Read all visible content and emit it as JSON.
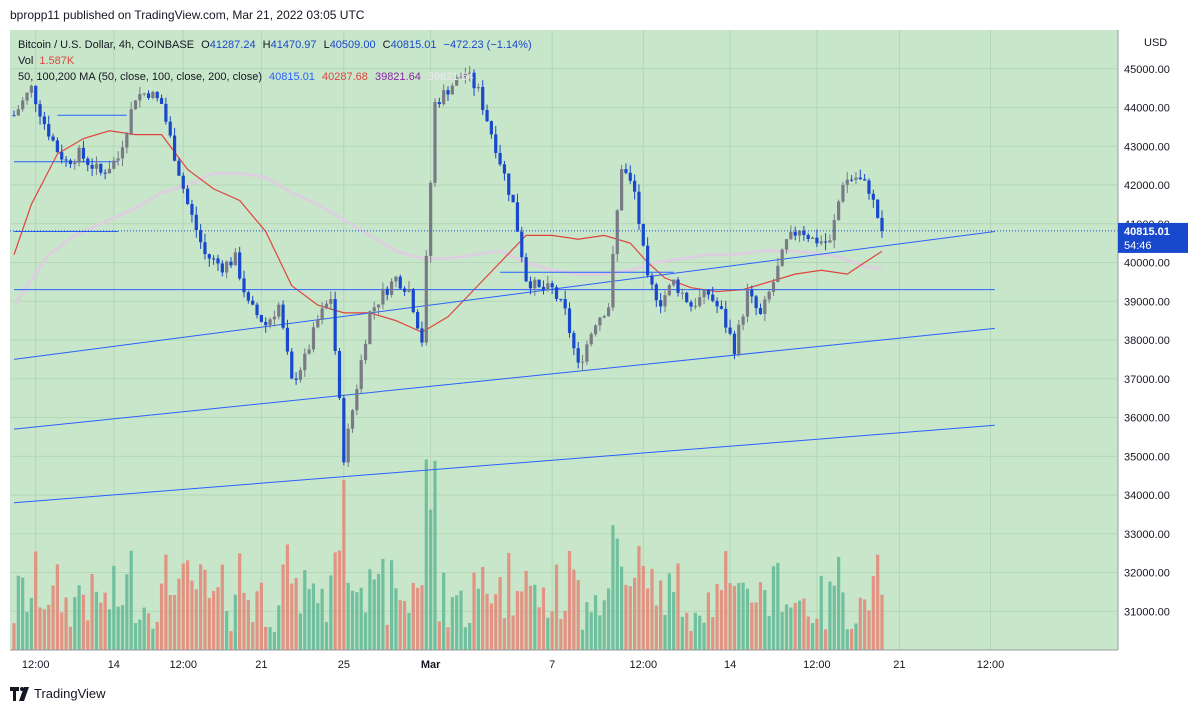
{
  "header": {
    "publisher": "bpropp11 published on TradingView.com, Mar 21, 2022 03:05 UTC"
  },
  "footer": {
    "brand": "TradingView"
  },
  "colors": {
    "background": "#c8e6c9",
    "up_candle": "#787b86",
    "down_candle": "#1848cc",
    "vol_up": "#66bb9a",
    "vol_down": "#e38b7c",
    "ma50": "#e0443e",
    "ma100": "#dccfe0",
    "trend": "#2962ff",
    "price_tag": "#1848cc"
  },
  "legend": {
    "title": "Bitcoin / U.S. Dollar, 4h, COINBASE",
    "o_label": "O",
    "o": "41287.24",
    "h_label": "H",
    "h": "41470.97",
    "l_label": "L",
    "l": "40509.00",
    "c_label": "C",
    "c": "40815.01",
    "change": "−472.23 (−1.14%)",
    "vol_label": "Vol",
    "vol": "1.587K",
    "ma_label": "50, 100,200 MA (50, close, 100, close, 200, close)",
    "ma1": "40815.01",
    "ma2": "40287.68",
    "ma3": "39821.64",
    "ma4": "39821.64"
  },
  "price_tag": {
    "price": "40815.01",
    "countdown": "54:46"
  },
  "chart_data": {
    "type": "candlestick",
    "symbol": "Bitcoin / U.S. Dollar",
    "timeframe": "4h",
    "exchange": "COINBASE",
    "currency": "USD",
    "ylim": [
      30000,
      46000
    ],
    "y_ticks": [
      "45000.00",
      "44000.00",
      "43000.00",
      "42000.00",
      "41000.00",
      "40000.00",
      "39000.00",
      "38000.00",
      "37000.00",
      "36000.00",
      "35000.00",
      "34000.00",
      "33000.00",
      "32000.00",
      "31000.00"
    ],
    "x_ticks": [
      "12:00",
      "14",
      "12:00",
      "21",
      "25",
      "Mar",
      "7",
      "12:00",
      "14",
      "12:00",
      "21",
      "12:00"
    ],
    "x_tick_index": [
      5,
      23,
      39,
      57,
      76,
      96,
      124,
      145,
      165,
      185,
      204,
      225
    ],
    "price_path": [
      [
        0,
        43800
      ],
      [
        4,
        44500
      ],
      [
        7,
        43600
      ],
      [
        10,
        42900
      ],
      [
        12,
        42600
      ],
      [
        15,
        42800
      ],
      [
        18,
        42500
      ],
      [
        20,
        42300
      ],
      [
        24,
        42700
      ],
      [
        28,
        44300
      ],
      [
        31,
        44400
      ],
      [
        34,
        44100
      ],
      [
        36,
        43200
      ],
      [
        40,
        41500
      ],
      [
        44,
        40200
      ],
      [
        48,
        39900
      ],
      [
        51,
        40100
      ],
      [
        54,
        38900
      ],
      [
        58,
        38400
      ],
      [
        61,
        38900
      ],
      [
        64,
        36900
      ],
      [
        67,
        37500
      ],
      [
        70,
        38500
      ],
      [
        73,
        39100
      ],
      [
        76,
        35000
      ],
      [
        78,
        36200
      ],
      [
        82,
        38700
      ],
      [
        85,
        39200
      ],
      [
        88,
        39600
      ],
      [
        91,
        39300
      ],
      [
        94,
        38000
      ],
      [
        97,
        44100
      ],
      [
        101,
        44600
      ],
      [
        104,
        44900
      ],
      [
        107,
        44400
      ],
      [
        111,
        43000
      ],
      [
        115,
        41500
      ],
      [
        118,
        39600
      ],
      [
        121,
        39300
      ],
      [
        124,
        39300
      ],
      [
        127,
        38700
      ],
      [
        130,
        37300
      ],
      [
        134,
        38500
      ],
      [
        137,
        38900
      ],
      [
        140,
        42500
      ],
      [
        143,
        41800
      ],
      [
        146,
        39500
      ],
      [
        149,
        39000
      ],
      [
        152,
        39500
      ],
      [
        156,
        38900
      ],
      [
        160,
        39200
      ],
      [
        163,
        38700
      ],
      [
        166,
        37800
      ],
      [
        169,
        39200
      ],
      [
        172,
        38600
      ],
      [
        175,
        39500
      ],
      [
        178,
        40500
      ],
      [
        181,
        40900
      ],
      [
        184,
        40600
      ],
      [
        188,
        40500
      ],
      [
        191,
        42100
      ],
      [
        194,
        42200
      ],
      [
        197,
        41900
      ],
      [
        200,
        40815
      ]
    ],
    "ma50": [
      [
        0,
        40200
      ],
      [
        4,
        41500
      ],
      [
        10,
        42800
      ],
      [
        16,
        43200
      ],
      [
        22,
        43400
      ],
      [
        28,
        43300
      ],
      [
        34,
        43300
      ],
      [
        40,
        42400
      ],
      [
        46,
        41900
      ],
      [
        52,
        41600
      ],
      [
        58,
        40800
      ],
      [
        64,
        39400
      ],
      [
        70,
        38900
      ],
      [
        76,
        38700
      ],
      [
        82,
        38700
      ],
      [
        88,
        38500
      ],
      [
        94,
        38200
      ],
      [
        100,
        38600
      ],
      [
        106,
        39300
      ],
      [
        112,
        40000
      ],
      [
        118,
        40700
      ],
      [
        124,
        40700
      ],
      [
        130,
        40600
      ],
      [
        136,
        40700
      ],
      [
        142,
        40500
      ],
      [
        146,
        40000
      ],
      [
        150,
        39600
      ],
      [
        156,
        39350
      ],
      [
        162,
        39250
      ],
      [
        168,
        39300
      ],
      [
        174,
        39500
      ],
      [
        180,
        39700
      ],
      [
        186,
        39800
      ],
      [
        192,
        39700
      ],
      [
        196,
        40000
      ],
      [
        200,
        40290
      ]
    ],
    "ma100": [
      [
        0,
        38900
      ],
      [
        8,
        40200
      ],
      [
        14,
        40700
      ],
      [
        20,
        41000
      ],
      [
        28,
        41400
      ],
      [
        34,
        41800
      ],
      [
        40,
        42000
      ],
      [
        46,
        42300
      ],
      [
        52,
        42300
      ],
      [
        58,
        42200
      ],
      [
        64,
        41800
      ],
      [
        70,
        41500
      ],
      [
        76,
        41100
      ],
      [
        82,
        40700
      ],
      [
        88,
        40300
      ],
      [
        94,
        40100
      ],
      [
        100,
        40100
      ],
      [
        106,
        40200
      ],
      [
        112,
        40300
      ],
      [
        118,
        40000
      ],
      [
        124,
        39800
      ],
      [
        130,
        39700
      ],
      [
        136,
        39700
      ],
      [
        142,
        39800
      ],
      [
        148,
        40000
      ],
      [
        154,
        40100
      ],
      [
        160,
        40200
      ],
      [
        166,
        40200
      ],
      [
        172,
        40300
      ],
      [
        178,
        40300
      ],
      [
        184,
        40250
      ],
      [
        190,
        40150
      ],
      [
        196,
        39900
      ],
      [
        200,
        39820
      ]
    ],
    "trend_lines": [
      {
        "from": [
          0,
          37500
        ],
        "to": [
          226,
          40800
        ]
      },
      {
        "from": [
          0,
          35700
        ],
        "to": [
          226,
          38300
        ]
      },
      {
        "from": [
          0,
          33800
        ],
        "to": [
          226,
          35800
        ]
      },
      {
        "from": [
          0,
          39300
        ],
        "to": [
          226,
          39300
        ]
      },
      {
        "from": [
          0,
          42600
        ],
        "to": [
          24,
          42600
        ]
      },
      {
        "from": [
          0,
          40800
        ],
        "to": [
          24,
          40800
        ]
      },
      {
        "from": [
          10,
          43800
        ],
        "to": [
          26,
          43800
        ]
      },
      {
        "from": [
          112,
          39750
        ],
        "to": [
          152,
          39750
        ]
      }
    ],
    "volume_max": 3000
  }
}
